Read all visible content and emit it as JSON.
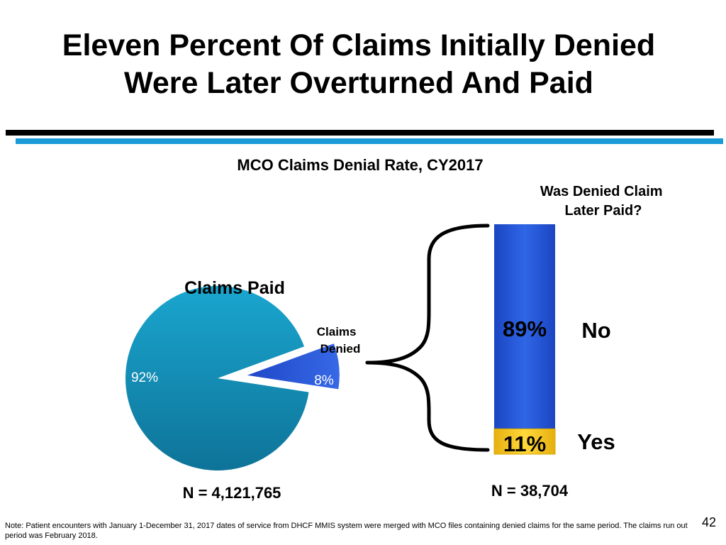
{
  "slide": {
    "title_line1": "Eleven Percent Of Claims Initially Denied",
    "title_line2": "Were Later Overturned And Paid",
    "page_number": "42",
    "note": "Note: Patient encounters with January 1-December 31, 2017 dates of service from DHCF MMIS system were merged with MCO files containing denied claims for the same period.  The claims run out period was February 2018.",
    "colors": {
      "rule_black": "#000000",
      "rule_blue": "#1a9bd7",
      "paid_slice": "#1690b8",
      "denied_slice": "#2a52d8",
      "no_segment": "#2456d4",
      "yes_segment": "#f2c318"
    }
  },
  "chart_data": [
    {
      "type": "pie",
      "title": "MCO Claims Denial Rate, CY2017",
      "slices": [
        {
          "name": "Claims Paid",
          "value": 92,
          "label": "92%"
        },
        {
          "name": "Claims Denied",
          "value": 8,
          "label": "8%"
        }
      ],
      "exploded": "Claims Denied",
      "n_label": "N = 4,121,765"
    },
    {
      "type": "bar",
      "title": "Was Denied Claim Later Paid?",
      "stacked": true,
      "segments": [
        {
          "name": "No",
          "value": 89,
          "label": "89%"
        },
        {
          "name": "Yes",
          "value": 11,
          "label": "11%"
        }
      ],
      "ylim": [
        0,
        100
      ],
      "n_label": "N = 38,704"
    }
  ]
}
